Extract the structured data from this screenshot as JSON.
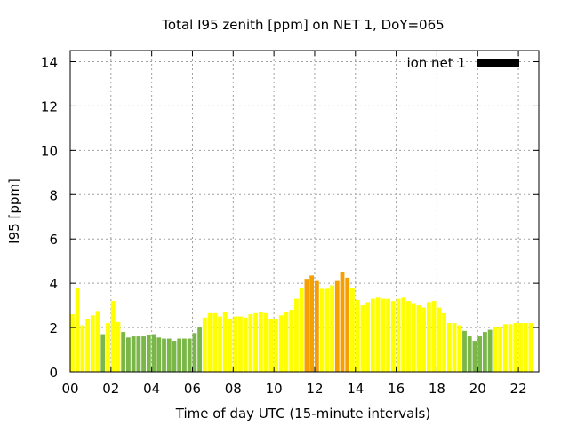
{
  "chart_data": {
    "type": "bar",
    "title": "Total I95 zenith [ppm] on NET 1, DoY=065",
    "xlabel": "Time of day UTC (15-minute intervals)",
    "ylabel": "I95 [ppm]",
    "xlim": [
      0,
      23
    ],
    "ylim": [
      0,
      14.5
    ],
    "grid": true,
    "legend": {
      "position": "top-right",
      "label": "ion net 1",
      "color": "#000000"
    },
    "x_ticks": [
      {
        "value": 0,
        "label": "00"
      },
      {
        "value": 2,
        "label": "02"
      },
      {
        "value": 4,
        "label": "04"
      },
      {
        "value": 6,
        "label": "06"
      },
      {
        "value": 8,
        "label": "08"
      },
      {
        "value": 10,
        "label": "10"
      },
      {
        "value": 12,
        "label": "12"
      },
      {
        "value": 14,
        "label": "14"
      },
      {
        "value": 16,
        "label": "16"
      },
      {
        "value": 18,
        "label": "18"
      },
      {
        "value": 20,
        "label": "20"
      },
      {
        "value": 22,
        "label": "22"
      }
    ],
    "y_ticks": [
      {
        "value": 0,
        "label": "0"
      },
      {
        "value": 2,
        "label": "2"
      },
      {
        "value": 4,
        "label": "4"
      },
      {
        "value": 6,
        "label": "6"
      },
      {
        "value": 8,
        "label": "8"
      },
      {
        "value": 10,
        "label": "10"
      },
      {
        "value": 12,
        "label": "12"
      },
      {
        "value": 14,
        "label": "14"
      }
    ],
    "colors": {
      "green": "#7ab648",
      "yellow": "#ffff00",
      "orange": "#f5a000"
    },
    "bar_width_hours": 0.21,
    "bars": [
      {
        "x": 0.0,
        "value": 2.6,
        "color": "yellow"
      },
      {
        "x": 0.25,
        "value": 3.8,
        "color": "yellow"
      },
      {
        "x": 0.5,
        "value": 2.1,
        "color": "yellow"
      },
      {
        "x": 0.75,
        "value": 2.4,
        "color": "yellow"
      },
      {
        "x": 1.0,
        "value": 2.55,
        "color": "yellow"
      },
      {
        "x": 1.25,
        "value": 2.75,
        "color": "yellow"
      },
      {
        "x": 1.5,
        "value": 1.7,
        "color": "green"
      },
      {
        "x": 1.75,
        "value": 2.2,
        "color": "yellow"
      },
      {
        "x": 2.0,
        "value": 3.2,
        "color": "yellow"
      },
      {
        "x": 2.25,
        "value": 2.25,
        "color": "yellow"
      },
      {
        "x": 2.5,
        "value": 1.8,
        "color": "green"
      },
      {
        "x": 2.75,
        "value": 1.55,
        "color": "green"
      },
      {
        "x": 3.0,
        "value": 1.6,
        "color": "green"
      },
      {
        "x": 3.25,
        "value": 1.6,
        "color": "green"
      },
      {
        "x": 3.5,
        "value": 1.6,
        "color": "green"
      },
      {
        "x": 3.75,
        "value": 1.65,
        "color": "green"
      },
      {
        "x": 4.0,
        "value": 1.7,
        "color": "green"
      },
      {
        "x": 4.25,
        "value": 1.55,
        "color": "green"
      },
      {
        "x": 4.5,
        "value": 1.5,
        "color": "green"
      },
      {
        "x": 4.75,
        "value": 1.5,
        "color": "green"
      },
      {
        "x": 5.0,
        "value": 1.4,
        "color": "green"
      },
      {
        "x": 5.25,
        "value": 1.5,
        "color": "green"
      },
      {
        "x": 5.5,
        "value": 1.5,
        "color": "green"
      },
      {
        "x": 5.75,
        "value": 1.5,
        "color": "green"
      },
      {
        "x": 6.0,
        "value": 1.75,
        "color": "green"
      },
      {
        "x": 6.25,
        "value": 2.0,
        "color": "green"
      },
      {
        "x": 6.5,
        "value": 2.45,
        "color": "yellow"
      },
      {
        "x": 6.75,
        "value": 2.65,
        "color": "yellow"
      },
      {
        "x": 7.0,
        "value": 2.65,
        "color": "yellow"
      },
      {
        "x": 7.25,
        "value": 2.5,
        "color": "yellow"
      },
      {
        "x": 7.5,
        "value": 2.7,
        "color": "yellow"
      },
      {
        "x": 7.75,
        "value": 2.4,
        "color": "yellow"
      },
      {
        "x": 8.0,
        "value": 2.5,
        "color": "yellow"
      },
      {
        "x": 8.25,
        "value": 2.5,
        "color": "yellow"
      },
      {
        "x": 8.5,
        "value": 2.45,
        "color": "yellow"
      },
      {
        "x": 8.75,
        "value": 2.6,
        "color": "yellow"
      },
      {
        "x": 9.0,
        "value": 2.65,
        "color": "yellow"
      },
      {
        "x": 9.25,
        "value": 2.7,
        "color": "yellow"
      },
      {
        "x": 9.5,
        "value": 2.65,
        "color": "yellow"
      },
      {
        "x": 9.75,
        "value": 2.4,
        "color": "yellow"
      },
      {
        "x": 10.0,
        "value": 2.4,
        "color": "yellow"
      },
      {
        "x": 10.25,
        "value": 2.55,
        "color": "yellow"
      },
      {
        "x": 10.5,
        "value": 2.7,
        "color": "yellow"
      },
      {
        "x": 10.75,
        "value": 2.8,
        "color": "yellow"
      },
      {
        "x": 11.0,
        "value": 3.3,
        "color": "yellow"
      },
      {
        "x": 11.25,
        "value": 3.8,
        "color": "yellow"
      },
      {
        "x": 11.5,
        "value": 4.2,
        "color": "orange"
      },
      {
        "x": 11.75,
        "value": 4.35,
        "color": "orange"
      },
      {
        "x": 12.0,
        "value": 4.1,
        "color": "orange"
      },
      {
        "x": 12.25,
        "value": 3.75,
        "color": "yellow"
      },
      {
        "x": 12.5,
        "value": 3.75,
        "color": "yellow"
      },
      {
        "x": 12.75,
        "value": 3.9,
        "color": "yellow"
      },
      {
        "x": 13.0,
        "value": 4.1,
        "color": "orange"
      },
      {
        "x": 13.25,
        "value": 4.5,
        "color": "orange"
      },
      {
        "x": 13.5,
        "value": 4.25,
        "color": "orange"
      },
      {
        "x": 13.75,
        "value": 3.8,
        "color": "yellow"
      },
      {
        "x": 14.0,
        "value": 3.25,
        "color": "yellow"
      },
      {
        "x": 14.25,
        "value": 3.0,
        "color": "yellow"
      },
      {
        "x": 14.5,
        "value": 3.15,
        "color": "yellow"
      },
      {
        "x": 14.75,
        "value": 3.3,
        "color": "yellow"
      },
      {
        "x": 15.0,
        "value": 3.35,
        "color": "yellow"
      },
      {
        "x": 15.25,
        "value": 3.3,
        "color": "yellow"
      },
      {
        "x": 15.5,
        "value": 3.3,
        "color": "yellow"
      },
      {
        "x": 15.75,
        "value": 3.2,
        "color": "yellow"
      },
      {
        "x": 16.0,
        "value": 3.3,
        "color": "yellow"
      },
      {
        "x": 16.25,
        "value": 3.35,
        "color": "yellow"
      },
      {
        "x": 16.5,
        "value": 3.2,
        "color": "yellow"
      },
      {
        "x": 16.75,
        "value": 3.1,
        "color": "yellow"
      },
      {
        "x": 17.0,
        "value": 3.0,
        "color": "yellow"
      },
      {
        "x": 17.25,
        "value": 2.9,
        "color": "yellow"
      },
      {
        "x": 17.5,
        "value": 3.15,
        "color": "yellow"
      },
      {
        "x": 17.75,
        "value": 3.2,
        "color": "yellow"
      },
      {
        "x": 18.0,
        "value": 2.9,
        "color": "yellow"
      },
      {
        "x": 18.25,
        "value": 2.65,
        "color": "yellow"
      },
      {
        "x": 18.5,
        "value": 2.2,
        "color": "yellow"
      },
      {
        "x": 18.75,
        "value": 2.2,
        "color": "yellow"
      },
      {
        "x": 19.0,
        "value": 2.1,
        "color": "yellow"
      },
      {
        "x": 19.25,
        "value": 1.85,
        "color": "green"
      },
      {
        "x": 19.5,
        "value": 1.6,
        "color": "green"
      },
      {
        "x": 19.75,
        "value": 1.4,
        "color": "green"
      },
      {
        "x": 20.0,
        "value": 1.6,
        "color": "green"
      },
      {
        "x": 20.25,
        "value": 1.8,
        "color": "green"
      },
      {
        "x": 20.5,
        "value": 1.9,
        "color": "green"
      },
      {
        "x": 20.75,
        "value": 2.0,
        "color": "yellow"
      },
      {
        "x": 21.0,
        "value": 2.05,
        "color": "yellow"
      },
      {
        "x": 21.25,
        "value": 2.15,
        "color": "yellow"
      },
      {
        "x": 21.5,
        "value": 2.15,
        "color": "yellow"
      },
      {
        "x": 21.75,
        "value": 2.2,
        "color": "yellow"
      },
      {
        "x": 22.0,
        "value": 2.2,
        "color": "yellow"
      },
      {
        "x": 22.25,
        "value": 2.2,
        "color": "yellow"
      },
      {
        "x": 22.5,
        "value": 2.2,
        "color": "yellow"
      }
    ]
  }
}
